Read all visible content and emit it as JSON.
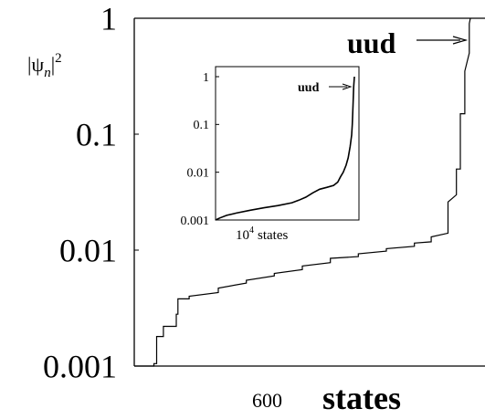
{
  "chart_data": [
    {
      "type": "line",
      "ylabel": "|ψ_n|²",
      "ylabel_parts": {
        "base": "|ψ",
        "sub": "n",
        "close": "|",
        "sup": "2"
      },
      "xlabel": "600 states",
      "xlabel_parts": {
        "number": "600",
        "unit": "states"
      },
      "yscale": "log",
      "ylim": [
        0.001,
        1
      ],
      "xlim": [
        0,
        600
      ],
      "y_ticks": [
        {
          "value": 1,
          "label": "1"
        },
        {
          "value": 0.1,
          "label": "0.1"
        },
        {
          "value": 0.01,
          "label": "0.01"
        },
        {
          "value": 0.001,
          "label": "0.001"
        }
      ],
      "annotation": {
        "text": "uud",
        "target_x": 600,
        "target_y": 1
      },
      "series": [
        {
          "x": [
            0,
            35,
            35,
            40,
            40,
            52,
            52,
            75,
            75,
            78,
            78,
            98,
            98,
            150,
            150,
            200,
            200,
            250,
            250,
            300,
            300,
            350,
            350,
            400,
            400,
            450,
            450,
            500,
            500,
            530,
            530,
            560,
            560,
            575,
            575,
            582,
            582,
            590,
            590,
            598,
            598,
            600
          ],
          "y": [
            0.001,
            0.001,
            0.00105,
            0.00105,
            0.0018,
            0.0018,
            0.0022,
            0.0022,
            0.0028,
            0.0028,
            0.0038,
            0.0038,
            0.004,
            0.0043,
            0.0047,
            0.0052,
            0.0055,
            0.006,
            0.0063,
            0.0068,
            0.0073,
            0.0078,
            0.0085,
            0.0088,
            0.0093,
            0.0098,
            0.0103,
            0.0108,
            0.0115,
            0.0118,
            0.013,
            0.014,
            0.026,
            0.03,
            0.05,
            0.05,
            0.15,
            0.15,
            0.35,
            0.5,
            0.9,
            1
          ]
        }
      ]
    },
    {
      "type": "line",
      "role": "inset",
      "xlabel": "10^4 states",
      "xlabel_parts": {
        "base": "10",
        "sup": "4",
        "unit": "states"
      },
      "yscale": "log",
      "ylim": [
        0.001,
        1
      ],
      "xlim": [
        0,
        10000
      ],
      "y_ticks": [
        {
          "value": 1,
          "label": "1"
        },
        {
          "value": 0.1,
          "label": "0.1"
        },
        {
          "value": 0.01,
          "label": "0.01"
        },
        {
          "value": 0.001,
          "label": "0.001"
        }
      ],
      "annotation": {
        "text": "uud",
        "target_x": 10000,
        "target_y": 1
      },
      "series": [
        {
          "x": [
            0,
            300,
            800,
            1500,
            2500,
            3500,
            4500,
            5500,
            6000,
            6500,
            7000,
            7500,
            8000,
            8500,
            8800,
            9000,
            9200,
            9400,
            9550,
            9700,
            9800,
            9850,
            9900,
            9950,
            10000
          ],
          "y": [
            0.001,
            0.0011,
            0.00125,
            0.0014,
            0.0016,
            0.0018,
            0.002,
            0.0023,
            0.0026,
            0.003,
            0.0037,
            0.0044,
            0.0048,
            0.0053,
            0.0062,
            0.008,
            0.01,
            0.014,
            0.02,
            0.035,
            0.06,
            0.1,
            0.25,
            0.6,
            1
          ]
        }
      ]
    }
  ]
}
